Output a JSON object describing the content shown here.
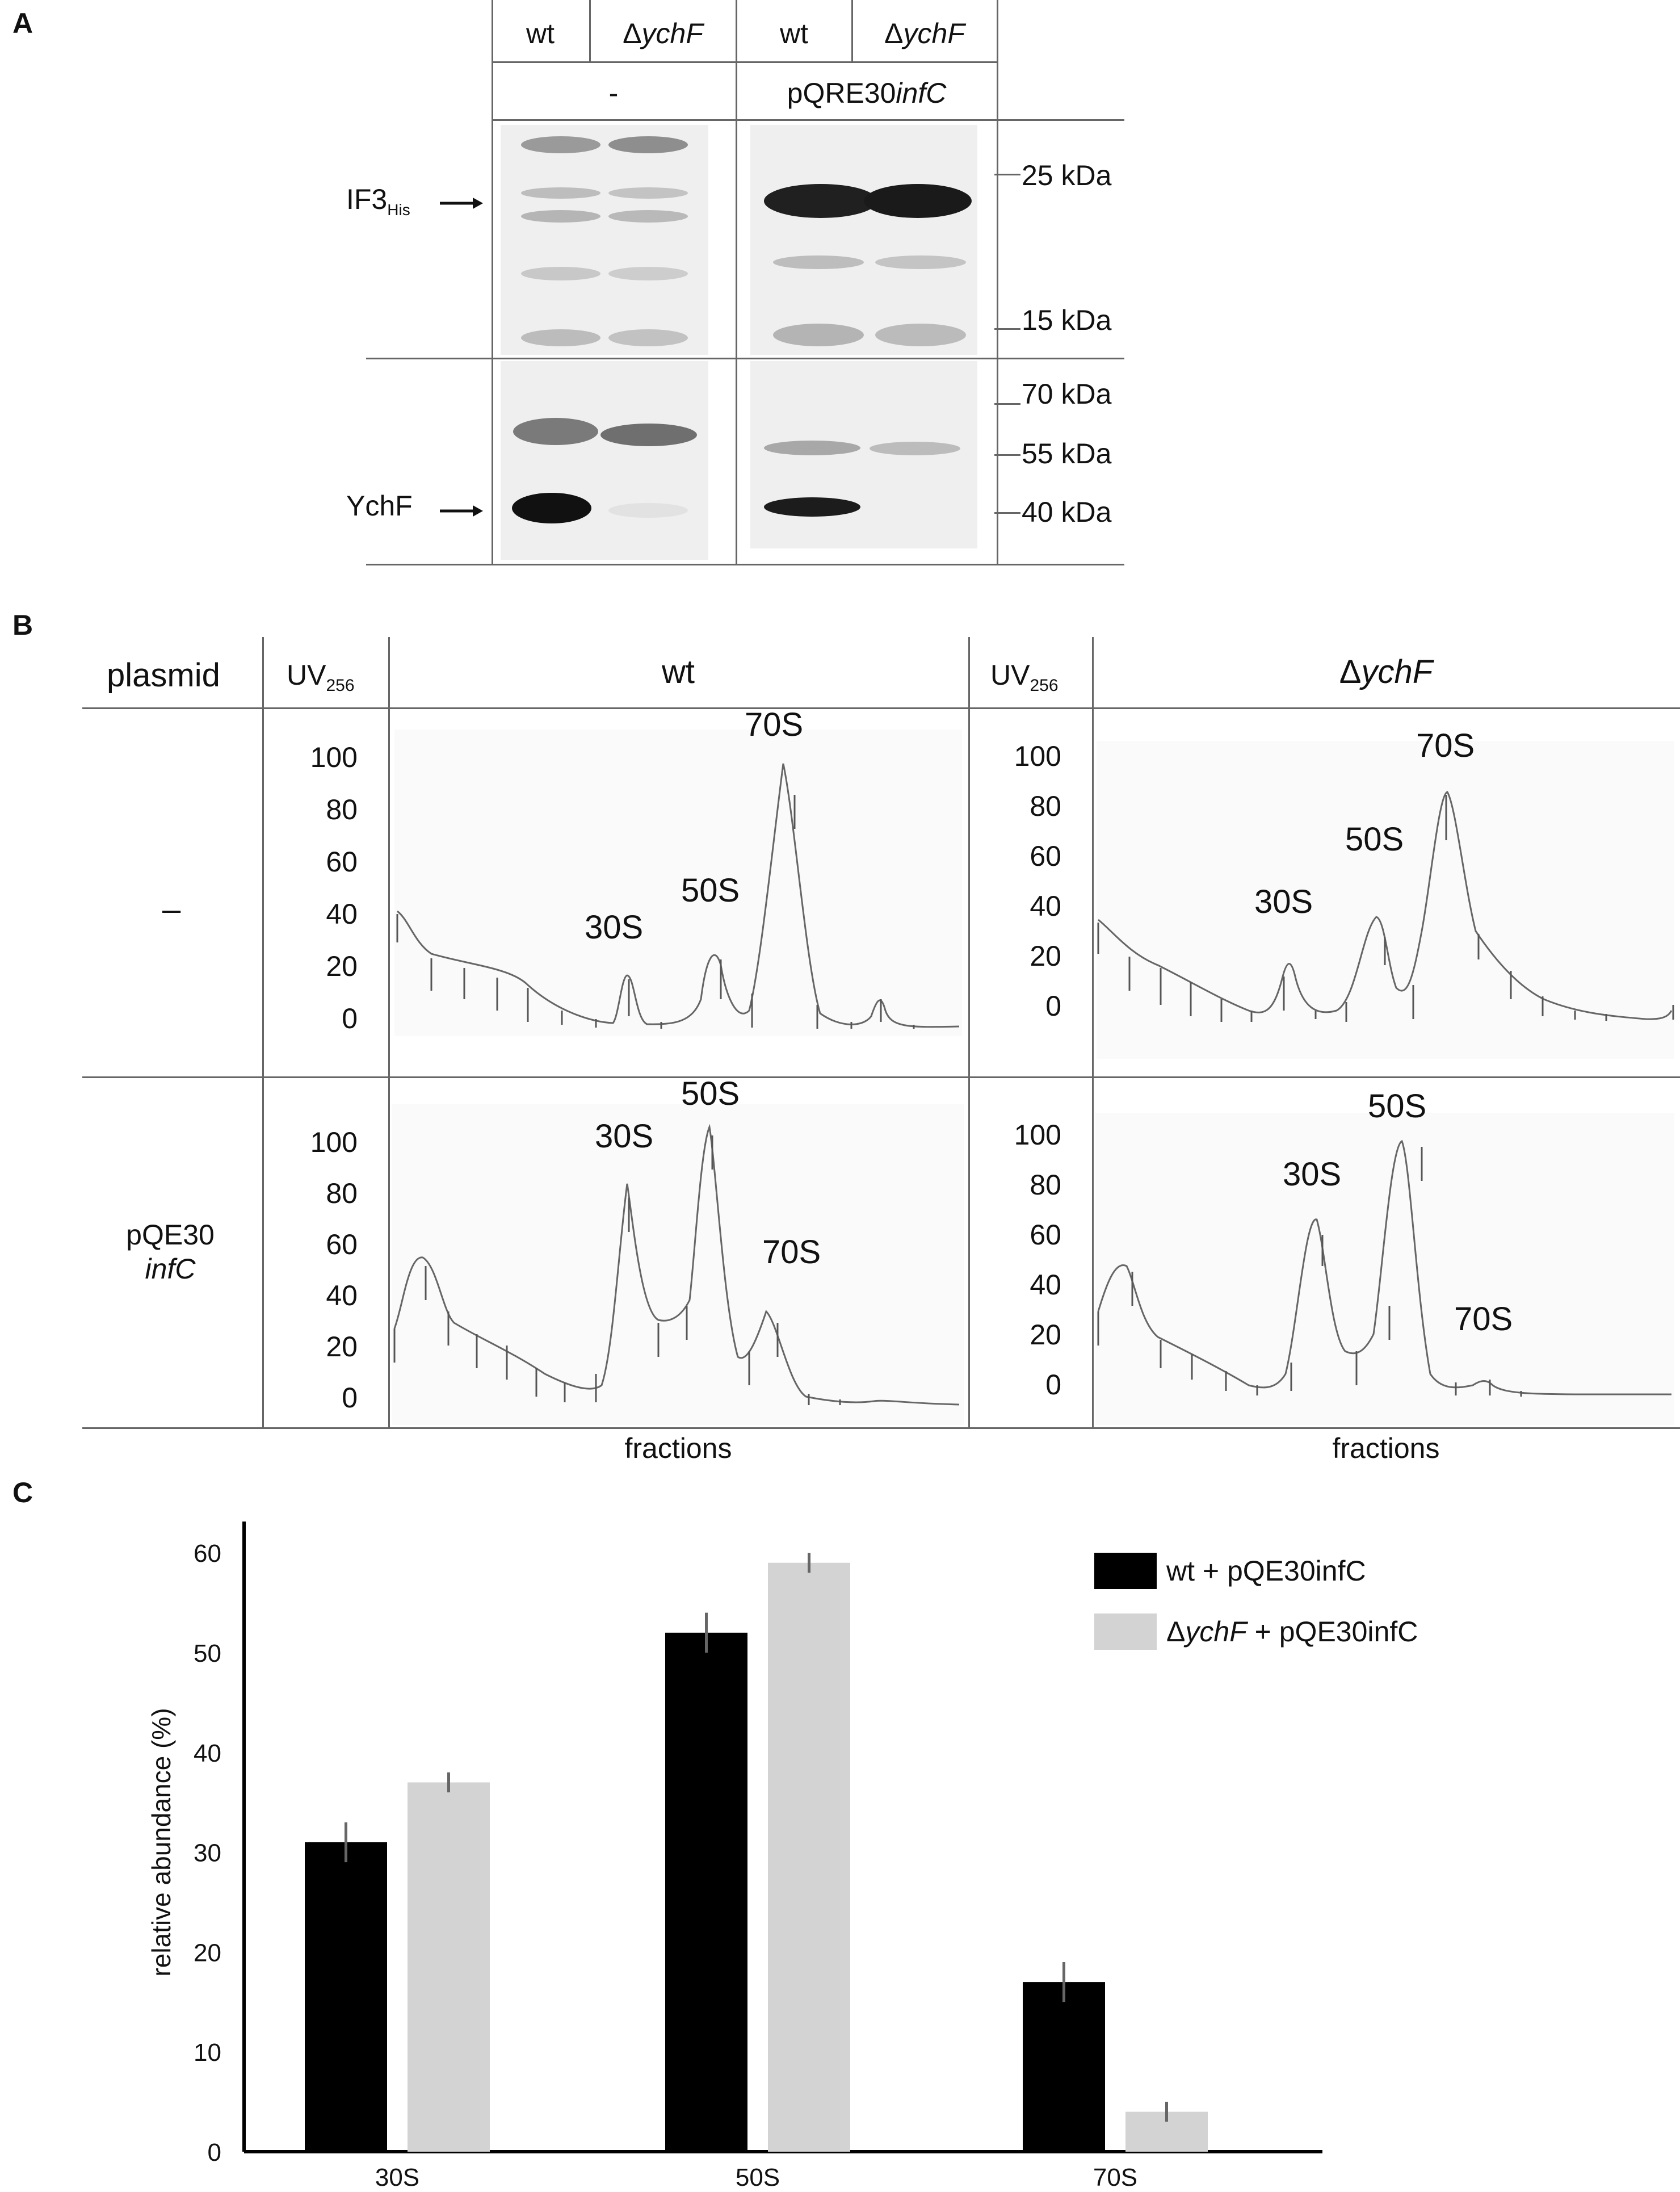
{
  "panels": {
    "A": {
      "letter": "A",
      "col_labels": [
        "wt",
        "Δ",
        "ychF",
        "wt",
        "Δ",
        "ychF"
      ],
      "group_labels": [
        "-",
        "pQRE30",
        "infC"
      ],
      "row_labels": {
        "if3": "IF3",
        "if3_sub": "His",
        "ychf": "YchF"
      },
      "markers_top": [
        "25 kDa",
        "15 kDa"
      ],
      "markers_bottom": [
        "70 kDa",
        "55 kDa",
        "40 kDa"
      ]
    },
    "B": {
      "letter": "B",
      "header": {
        "plasmid": "plasmid",
        "uv": "UV",
        "uv_sub": "256",
        "wt": "wt",
        "delta": "Δ",
        "ychf": "ychF"
      },
      "row_labels": {
        "none": "–",
        "pqe30": "pQE30",
        "infc": "infC"
      },
      "y_ticks": [
        "0",
        "20",
        "40",
        "60",
        "80",
        "100"
      ],
      "x_label": "fractions",
      "peak_labels": {
        "s30": "30S",
        "s50": "50S",
        "s70": "70S"
      }
    },
    "C": {
      "letter": "C"
    }
  },
  "chart_data": {
    "type": "bar",
    "categories": [
      "30S",
      "50S",
      "70S"
    ],
    "series": [
      {
        "name": "wt + pQE30infC",
        "color": "#000000",
        "values": [
          31,
          52,
          17
        ],
        "errors": [
          2,
          2,
          2
        ]
      },
      {
        "name": "ΔychF + pQE30infC",
        "color": "#d3d3d3",
        "values": [
          37,
          59,
          4
        ],
        "errors": [
          1,
          1,
          1
        ]
      }
    ],
    "ylabel": "relative abundance (%)",
    "ylim": [
      0,
      62
    ],
    "yticks": [
      0,
      10,
      20,
      30,
      40,
      50,
      60
    ],
    "legend": {
      "position": "top-right",
      "entries": [
        "wt + pQE30infC",
        "Δ",
        "ychF",
        " + pQE30infC"
      ]
    }
  }
}
